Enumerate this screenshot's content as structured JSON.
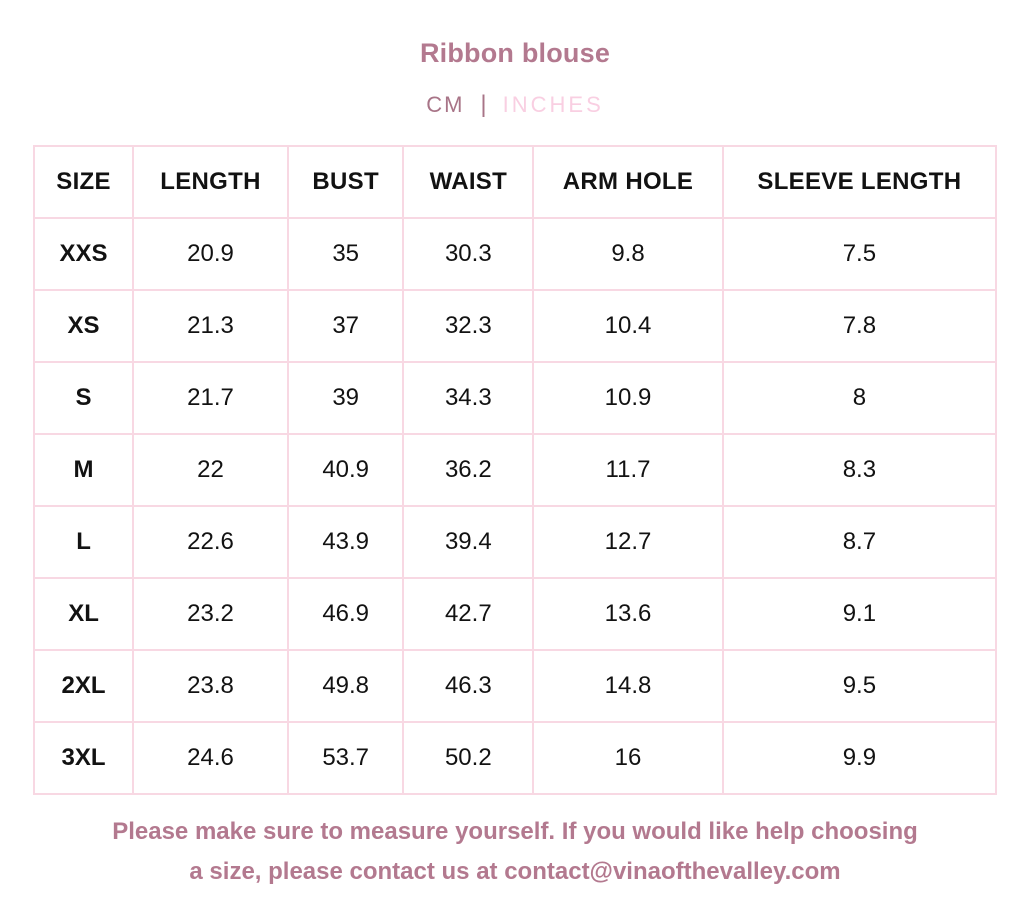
{
  "header": {
    "title": "Ribbon blouse",
    "units": {
      "cm_label": "CM",
      "separator": "|",
      "inches_label": "INCHES",
      "active_unit": "INCHES"
    }
  },
  "colors": {
    "accent": "#b3798f",
    "unit_active": "#a87487",
    "unit_inactive": "#f9cfe2",
    "table_border": "#f8d8e3",
    "cell_text": "#121212"
  },
  "table": {
    "columns": [
      "SIZE",
      "LENGTH",
      "BUST",
      "WAIST",
      "ARM HOLE",
      "SLEEVE LENGTH"
    ],
    "rows": [
      {
        "size": "XXS",
        "length": "20.9",
        "bust": "35",
        "waist": "30.3",
        "arm_hole": "9.8",
        "sleeve_length": "7.5"
      },
      {
        "size": "XS",
        "length": "21.3",
        "bust": "37",
        "waist": "32.3",
        "arm_hole": "10.4",
        "sleeve_length": "7.8"
      },
      {
        "size": "S",
        "length": "21.7",
        "bust": "39",
        "waist": "34.3",
        "arm_hole": "10.9",
        "sleeve_length": "8"
      },
      {
        "size": "M",
        "length": "22",
        "bust": "40.9",
        "waist": "36.2",
        "arm_hole": "11.7",
        "sleeve_length": "8.3"
      },
      {
        "size": "L",
        "length": "22.6",
        "bust": "43.9",
        "waist": "39.4",
        "arm_hole": "12.7",
        "sleeve_length": "8.7"
      },
      {
        "size": "XL",
        "length": "23.2",
        "bust": "46.9",
        "waist": "42.7",
        "arm_hole": "13.6",
        "sleeve_length": "9.1"
      },
      {
        "size": "2XL",
        "length": "23.8",
        "bust": "49.8",
        "waist": "46.3",
        "arm_hole": "14.8",
        "sleeve_length": "9.5"
      },
      {
        "size": "3XL",
        "length": "24.6",
        "bust": "53.7",
        "waist": "50.2",
        "arm_hole": "16",
        "sleeve_length": "9.9"
      }
    ]
  },
  "footer": {
    "lines": [
      "Please make sure to measure yourself. If you would like help choosing",
      "a size, please contact us at contact@vinaofthevalley.com"
    ]
  }
}
